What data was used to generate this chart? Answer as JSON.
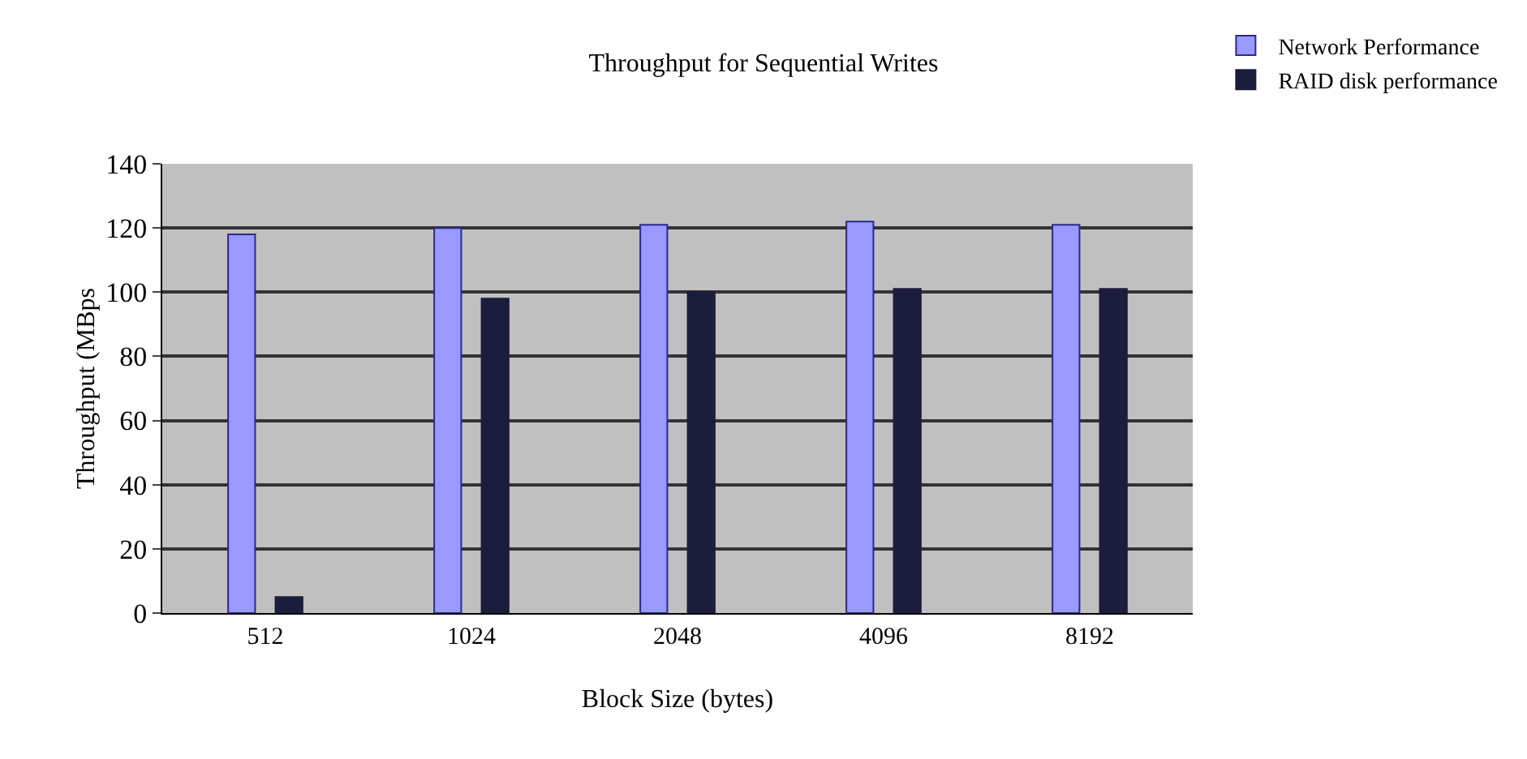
{
  "chart_data": {
    "type": "bar",
    "title": "Throughput for Sequential Writes",
    "xlabel": "Block Size (bytes)",
    "ylabel": "Throughput (MBps",
    "categories": [
      "512",
      "1024",
      "2048",
      "4096",
      "8192"
    ],
    "series": [
      {
        "name": "Network Performance",
        "color": "#9999ff",
        "values": [
          118,
          120,
          121,
          122,
          121
        ]
      },
      {
        "name": "RAID disk performance",
        "color": "#1c1c3c",
        "values": [
          5,
          98,
          100,
          101,
          101
        ]
      }
    ],
    "ylim": [
      0,
      140
    ],
    "yticks": [
      0,
      20,
      40,
      60,
      80,
      100,
      120,
      140
    ],
    "grid": "y",
    "legend": "top right"
  }
}
